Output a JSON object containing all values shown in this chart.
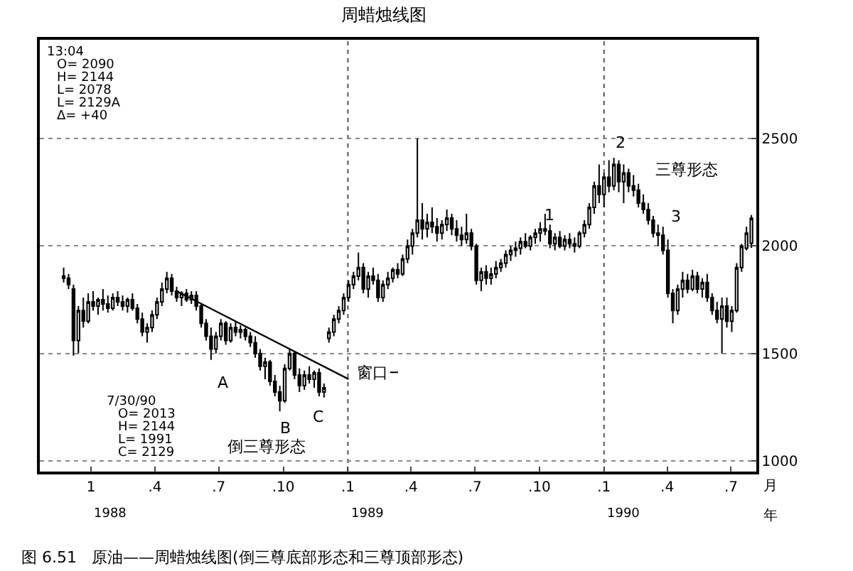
{
  "chart_data": {
    "type": "candlestick",
    "title": "周蜡烛线图",
    "x": [
      "1987-11-23",
      "1987-11-30",
      "1987-12-07",
      "1987-12-14",
      "1987-12-21",
      "1987-12-28",
      "1988-01-04",
      "1988-01-11",
      "1988-01-18",
      "1988-01-25",
      "1988-02-01",
      "1988-02-08",
      "1988-02-15",
      "1988-02-22",
      "1988-02-29",
      "1988-03-07",
      "1988-03-14",
      "1988-03-21",
      "1988-03-28",
      "1988-04-04",
      "1988-04-11",
      "1988-04-18",
      "1988-04-25",
      "1988-05-02",
      "1988-05-09",
      "1988-05-16",
      "1988-05-23",
      "1988-05-30",
      "1988-06-06",
      "1988-06-13",
      "1988-06-20",
      "1988-06-27",
      "1988-07-04",
      "1988-07-11",
      "1988-07-18",
      "1988-07-25",
      "1988-08-01",
      "1988-08-08",
      "1988-08-15",
      "1988-08-22",
      "1988-08-29",
      "1988-09-05",
      "1988-09-12",
      "1988-09-19",
      "1988-09-26",
      "1988-10-03",
      "1988-10-10",
      "1988-10-17",
      "1988-10-24",
      "1988-10-31",
      "1988-11-07",
      "1988-11-14",
      "1988-11-21",
      "1988-11-28",
      "1988-12-05",
      "1988-12-12",
      "1988-12-19",
      "1988-12-26",
      "1989-01-02",
      "1989-01-09",
      "1989-01-16",
      "1989-01-23",
      "1989-01-30",
      "1989-02-06",
      "1989-02-13",
      "1989-02-20",
      "1989-02-27",
      "1989-03-06",
      "1989-03-13",
      "1989-03-20",
      "1989-03-27",
      "1989-04-03",
      "1989-04-10",
      "1989-04-17",
      "1989-04-24",
      "1989-05-01",
      "1989-05-08",
      "1989-05-15",
      "1989-05-22",
      "1989-05-29",
      "1989-06-05",
      "1989-06-12",
      "1989-06-19",
      "1989-06-26",
      "1989-07-03",
      "1989-07-10",
      "1989-07-17",
      "1989-07-24",
      "1989-07-31",
      "1989-08-07",
      "1989-08-14",
      "1989-08-21",
      "1989-08-28",
      "1989-09-04",
      "1989-09-11",
      "1989-09-18",
      "1989-09-25",
      "1989-10-02",
      "1989-10-09",
      "1989-10-16",
      "1989-10-23",
      "1989-10-30",
      "1989-11-06",
      "1989-11-13",
      "1989-11-20",
      "1989-11-27",
      "1989-12-04",
      "1989-12-11",
      "1989-12-18",
      "1989-12-25",
      "1990-01-01",
      "1990-01-08",
      "1990-01-15",
      "1990-01-22",
      "1990-01-29",
      "1990-02-05",
      "1990-02-12",
      "1990-02-19",
      "1990-02-26",
      "1990-03-05",
      "1990-03-12",
      "1990-03-19",
      "1990-03-26",
      "1990-04-02",
      "1990-04-09",
      "1990-04-16",
      "1990-04-23",
      "1990-04-30",
      "1990-05-07",
      "1990-05-14",
      "1990-05-21",
      "1990-05-28",
      "1990-06-04",
      "1990-06-11",
      "1990-06-18",
      "1990-06-25",
      "1990-07-02",
      "1990-07-09",
      "1990-07-16",
      "1990-07-23",
      "1990-07-30"
    ],
    "series": [
      {
        "color": "#000000",
        "ohlc": [
          [
            1860,
            1900,
            1830,
            1850
          ],
          [
            1850,
            1870,
            1800,
            1820
          ],
          [
            1800,
            1820,
            1490,
            1560
          ],
          [
            1560,
            1720,
            1500,
            1700
          ],
          [
            1700,
            1760,
            1620,
            1650
          ],
          [
            1650,
            1780,
            1640,
            1740
          ],
          [
            1740,
            1790,
            1700,
            1720
          ],
          [
            1720,
            1760,
            1680,
            1750
          ],
          [
            1750,
            1800,
            1700,
            1730
          ],
          [
            1730,
            1770,
            1690,
            1710
          ],
          [
            1710,
            1780,
            1700,
            1760
          ],
          [
            1760,
            1790,
            1720,
            1740
          ],
          [
            1740,
            1770,
            1700,
            1720
          ],
          [
            1720,
            1760,
            1690,
            1750
          ],
          [
            1750,
            1780,
            1700,
            1710
          ],
          [
            1710,
            1730,
            1640,
            1660
          ],
          [
            1660,
            1690,
            1580,
            1600
          ],
          [
            1600,
            1640,
            1550,
            1620
          ],
          [
            1620,
            1700,
            1600,
            1680
          ],
          [
            1680,
            1760,
            1660,
            1740
          ],
          [
            1740,
            1830,
            1720,
            1800
          ],
          [
            1800,
            1880,
            1780,
            1850
          ],
          [
            1850,
            1870,
            1770,
            1790
          ],
          [
            1790,
            1810,
            1740,
            1760
          ],
          [
            1760,
            1790,
            1720,
            1780
          ],
          [
            1780,
            1800,
            1740,
            1750
          ],
          [
            1750,
            1790,
            1730,
            1770
          ],
          [
            1770,
            1790,
            1700,
            1720
          ],
          [
            1720,
            1730,
            1620,
            1640
          ],
          [
            1640,
            1660,
            1560,
            1580
          ],
          [
            1580,
            1620,
            1470,
            1520
          ],
          [
            1520,
            1600,
            1500,
            1580
          ],
          [
            1580,
            1660,
            1560,
            1640
          ],
          [
            1640,
            1650,
            1540,
            1560
          ],
          [
            1560,
            1640,
            1550,
            1620
          ],
          [
            1620,
            1650,
            1580,
            1600
          ],
          [
            1600,
            1630,
            1570,
            1610
          ],
          [
            1610,
            1620,
            1560,
            1580
          ],
          [
            1580,
            1600,
            1530,
            1550
          ],
          [
            1550,
            1580,
            1480,
            1500
          ],
          [
            1500,
            1520,
            1420,
            1440
          ],
          [
            1440,
            1480,
            1380,
            1460
          ],
          [
            1460,
            1470,
            1350,
            1370
          ],
          [
            1370,
            1400,
            1300,
            1320
          ],
          [
            1320,
            1350,
            1230,
            1280
          ],
          [
            1280,
            1450,
            1270,
            1430
          ],
          [
            1430,
            1520,
            1420,
            1500
          ],
          [
            1500,
            1510,
            1380,
            1400
          ],
          [
            1400,
            1430,
            1320,
            1350
          ],
          [
            1350,
            1420,
            1330,
            1400
          ],
          [
            1400,
            1440,
            1360,
            1380
          ],
          [
            1380,
            1420,
            1340,
            1410
          ],
          [
            1410,
            1430,
            1300,
            1320
          ],
          [
            1320,
            1360,
            1295,
            1340
          ],
          [
            1570,
            1620,
            1550,
            1600
          ],
          [
            1600,
            1680,
            1580,
            1660
          ],
          [
            1660,
            1720,
            1640,
            1700
          ],
          [
            1700,
            1780,
            1680,
            1760
          ],
          [
            1760,
            1840,
            1740,
            1820
          ],
          [
            1820,
            1880,
            1800,
            1860
          ],
          [
            1860,
            1970,
            1840,
            1900
          ],
          [
            1900,
            1920,
            1780,
            1800
          ],
          [
            1800,
            1880,
            1760,
            1860
          ],
          [
            1860,
            1900,
            1820,
            1840
          ],
          [
            1840,
            1870,
            1740,
            1760
          ],
          [
            1760,
            1840,
            1740,
            1820
          ],
          [
            1820,
            1880,
            1800,
            1850
          ],
          [
            1850,
            1900,
            1830,
            1890
          ],
          [
            1890,
            1920,
            1850,
            1870
          ],
          [
            1870,
            1960,
            1860,
            1940
          ],
          [
            1940,
            2030,
            1920,
            2000
          ],
          [
            2000,
            2080,
            1960,
            2060
          ],
          [
            2060,
            2500,
            2040,
            2120
          ],
          [
            2120,
            2200,
            2030,
            2080
          ],
          [
            2080,
            2150,
            2040,
            2110
          ],
          [
            2110,
            2180,
            2060,
            2090
          ],
          [
            2090,
            2130,
            2020,
            2060
          ],
          [
            2060,
            2120,
            2030,
            2100
          ],
          [
            2100,
            2170,
            2070,
            2130
          ],
          [
            2130,
            2150,
            2050,
            2080
          ],
          [
            2080,
            2120,
            2020,
            2050
          ],
          [
            2050,
            2090,
            2000,
            2030
          ],
          [
            2030,
            2150,
            2010,
            2060
          ],
          [
            2060,
            2080,
            1980,
            2000
          ],
          [
            2000,
            2010,
            1820,
            1840
          ],
          [
            1840,
            1900,
            1790,
            1880
          ],
          [
            1880,
            1910,
            1820,
            1850
          ],
          [
            1850,
            1900,
            1820,
            1870
          ],
          [
            1870,
            1930,
            1850,
            1900
          ],
          [
            1900,
            1940,
            1880,
            1920
          ],
          [
            1920,
            1980,
            1900,
            1960
          ],
          [
            1960,
            2000,
            1930,
            1980
          ],
          [
            1980,
            2020,
            1950,
            1990
          ],
          [
            1990,
            2040,
            1960,
            2020
          ],
          [
            2020,
            2060,
            1990,
            2000
          ],
          [
            2000,
            2050,
            1980,
            2040
          ],
          [
            2040,
            2080,
            2010,
            2060
          ],
          [
            2060,
            2110,
            2020,
            2080
          ],
          [
            2080,
            2150,
            2050,
            2070
          ],
          [
            2070,
            2100,
            1990,
            2010
          ],
          [
            2010,
            2060,
            1980,
            2040
          ],
          [
            2040,
            2070,
            1990,
            2000
          ],
          [
            2000,
            2050,
            1980,
            2030
          ],
          [
            2030,
            2060,
            1990,
            2010
          ],
          [
            2010,
            2040,
            1970,
            2000
          ],
          [
            2000,
            2070,
            1990,
            2060
          ],
          [
            2060,
            2120,
            2040,
            2100
          ],
          [
            2100,
            2200,
            2080,
            2180
          ],
          [
            2180,
            2300,
            2150,
            2280
          ],
          [
            2280,
            2380,
            2200,
            2240
          ],
          [
            2240,
            2340,
            2180,
            2320
          ],
          [
            2320,
            2400,
            2250,
            2280
          ],
          [
            2280,
            2410,
            2260,
            2380
          ],
          [
            2380,
            2400,
            2250,
            2300
          ],
          [
            2300,
            2380,
            2200,
            2340
          ],
          [
            2340,
            2360,
            2250,
            2280
          ],
          [
            2280,
            2330,
            2230,
            2260
          ],
          [
            2260,
            2290,
            2180,
            2200
          ],
          [
            2200,
            2240,
            2150,
            2170
          ],
          [
            2170,
            2200,
            2100,
            2120
          ],
          [
            2120,
            2140,
            2040,
            2060
          ],
          [
            2060,
            2100,
            2000,
            2050
          ],
          [
            2050,
            2090,
            1960,
            1980
          ],
          [
            1980,
            2030,
            1760,
            1780
          ],
          [
            1780,
            1800,
            1640,
            1700
          ],
          [
            1700,
            1820,
            1680,
            1800
          ],
          [
            1800,
            1880,
            1760,
            1840
          ],
          [
            1840,
            1870,
            1780,
            1800
          ],
          [
            1800,
            1890,
            1790,
            1860
          ],
          [
            1860,
            1880,
            1780,
            1800
          ],
          [
            1800,
            1850,
            1760,
            1830
          ],
          [
            1830,
            1870,
            1740,
            1760
          ],
          [
            1760,
            1780,
            1680,
            1700
          ],
          [
            1700,
            1740,
            1640,
            1660
          ],
          [
            1660,
            1760,
            1500,
            1720
          ],
          [
            1720,
            1760,
            1620,
            1650
          ],
          [
            1650,
            1720,
            1600,
            1700
          ],
          [
            1700,
            1920,
            1690,
            1900
          ],
          [
            1900,
            2010,
            1880,
            2000
          ],
          [
            1990,
            2090,
            1980,
            2060
          ],
          [
            2013,
            2144,
            1991,
            2129
          ]
        ]
      },
      {
        "type": "line",
        "color": "#000000",
        "x": [
          "1988-05-02",
          "1989-01-02"
        ],
        "values": [
          1790,
          1380
        ]
      }
    ],
    "xlim": [
      "1987-10-20",
      "1990-08-06"
    ],
    "xticks": [
      {
        "value": "1988-01-01",
        "label": "1"
      },
      {
        "value": "1988-04-01",
        "label": ".4"
      },
      {
        "value": "1988-07-01",
        "label": ".7"
      },
      {
        "value": "1988-10-01",
        "label": ".10"
      },
      {
        "value": "1989-01-01",
        "label": ".1"
      },
      {
        "value": "1989-04-01",
        "label": ".4"
      },
      {
        "value": "1989-07-01",
        "label": ".7"
      },
      {
        "value": "1989-10-01",
        "label": ".10"
      },
      {
        "value": "1990-01-01",
        "label": ".1"
      },
      {
        "value": "1990-04-01",
        "label": ".4"
      },
      {
        "value": "1990-07-01",
        "label": ".7"
      }
    ],
    "ylim": [
      950,
      2960
    ],
    "yticks": [
      1000,
      1500,
      2000,
      2500
    ],
    "grid": "y",
    "ref_lines": [
      {
        "axis": "x",
        "value": "1989-01-01",
        "line_style": "dotted"
      },
      {
        "axis": "x",
        "value": "1990-01-01",
        "line_style": "dotted"
      }
    ],
    "annotations": [
      "1",
      "2",
      "3",
      "三尊形态",
      "A",
      "B",
      "C",
      "倒三尊形态",
      "窗口",
      "13:04",
      "O= 2090",
      "H= 2144",
      "L= 2078",
      "L= 2129A",
      "Δ= +40",
      "7/30/90",
      "O= 2013",
      "H= 2144",
      "L= 1991",
      "C= 2129",
      "1988",
      "1989",
      "1990",
      "月",
      "年",
      "图 6.51   原油——周蜡烛线图(倒三尊底部形态和三尊顶部形态)"
    ]
  }
}
